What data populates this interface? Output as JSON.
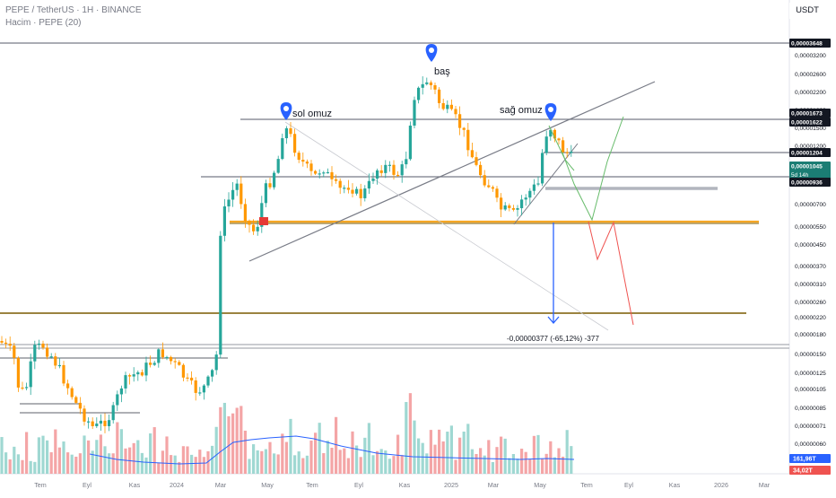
{
  "header": {
    "title": "PEPE / TetherUS · 1H · BINANCE",
    "volume_title": "Hacim · PEPE (20)",
    "currency": "USDT"
  },
  "chart_data": {
    "type": "candlestick",
    "y_scale": "log",
    "y_ticks": [
      "0,00003200",
      "0,00002600",
      "0,00002200",
      "0,00001800",
      "0,00001500",
      "0,00001200",
      "0,00000700",
      "0,00000550",
      "0,00000450",
      "0,00000370",
      "0,00000310",
      "0,00000260",
      "0,00000220",
      "0,00000180",
      "0,00000150",
      "0,00000125",
      "0,00000105",
      "0,00000085",
      "0,00000071",
      "0,00000060"
    ],
    "x_ticks": [
      "Tem",
      "Eyl",
      "Kas",
      "2024",
      "Mar",
      "May",
      "Tem",
      "Eyl",
      "Kas",
      "2025",
      "Mar",
      "May",
      "Tem",
      "Eyl",
      "Kas",
      "2026",
      "Mar"
    ],
    "price_labels": [
      {
        "text": "0,00003648",
        "style": "dark"
      },
      {
        "text": "0,00001673",
        "style": "dark"
      },
      {
        "text": "0,00001622",
        "style": "dark"
      },
      {
        "text": "0,00001204",
        "style": "dark"
      },
      {
        "text": "0,00001045",
        "sub": "5d 14h",
        "style": "teal"
      },
      {
        "text": "0,00000936",
        "style": "dark"
      }
    ],
    "volume_labels": [
      {
        "text": "161,96T",
        "style": "blue"
      },
      {
        "text": "34,02T",
        "style": "red"
      }
    ],
    "annotations": [
      {
        "text": "sol omuz"
      },
      {
        "text": "baş"
      },
      {
        "text": "sağ omuz"
      },
      {
        "text": "-0,00000377 (-65,12%) -377"
      }
    ]
  }
}
